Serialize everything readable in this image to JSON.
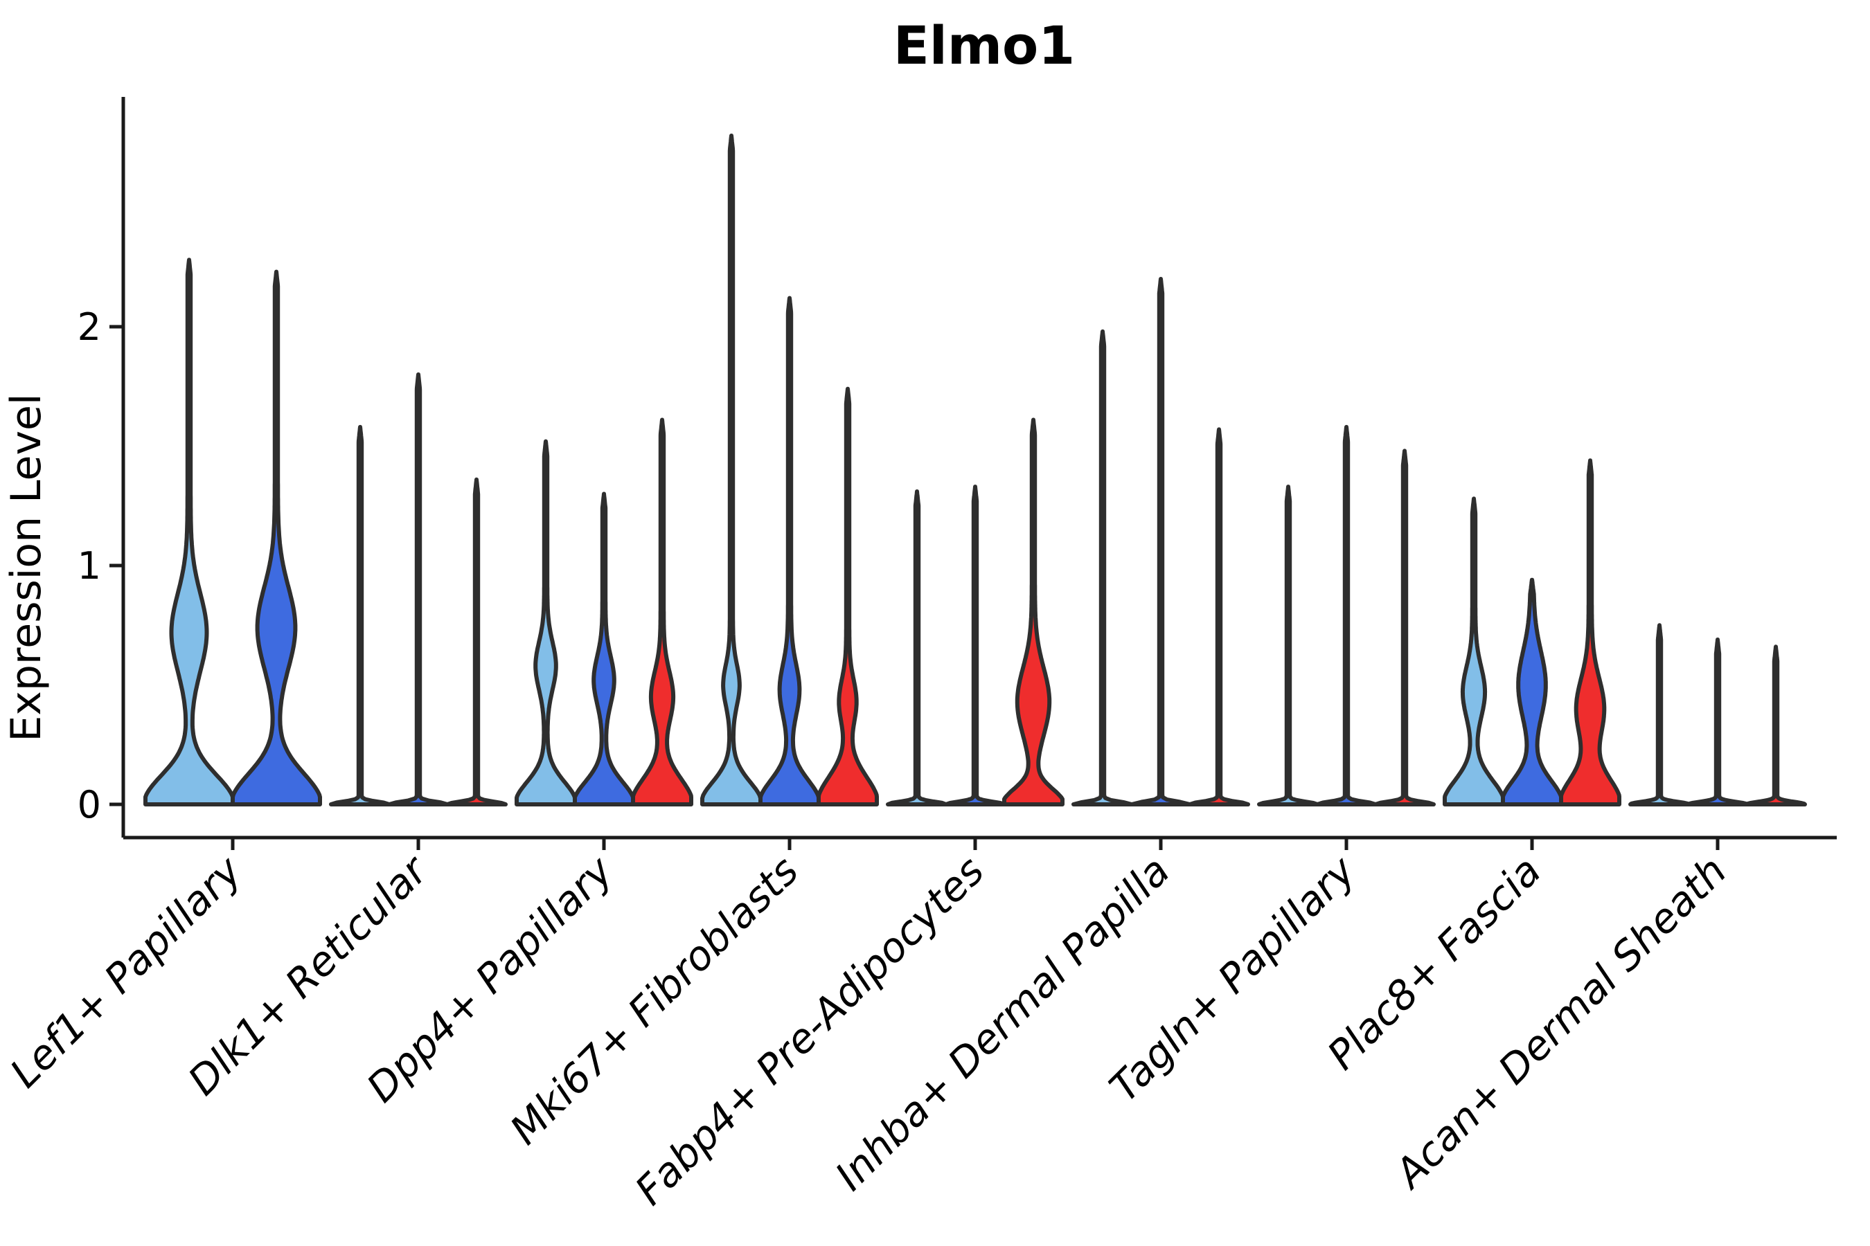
{
  "title": "Elmo1",
  "chart_data": {
    "type": "violin",
    "title": "Elmo1",
    "xlabel": "",
    "ylabel": "Expression Level",
    "yticks": [
      "0",
      "1",
      "2"
    ],
    "ylim": [
      -0.14,
      2.96
    ],
    "grid": false,
    "legend_position": "none",
    "colors": {
      "outline": "#2E2E2E",
      "axis": "#1A1A1A",
      "background": "#FFFFFF"
    },
    "splits": [
      {
        "name": "light-blue",
        "color": "#82BEE8"
      },
      {
        "name": "dark-blue",
        "color": "#3E6BE0"
      },
      {
        "name": "red",
        "color": "#EF2D2D"
      }
    ],
    "categories": [
      "Lef1+ Papillary",
      "Dlk1+ Reticular",
      "Dpp4+ Papillary",
      "Mki67+ Fibroblasts",
      "Fabp4+ Pre-Adipocytes",
      "Inhba+ Dermal Papilla",
      "Tagln+ Papillary",
      "Plac8+ Fascia",
      "Acan+ Dermal Sheath"
    ],
    "groups": [
      {
        "category": "Lef1+ Papillary",
        "violins": [
          {
            "split": "light-blue",
            "max": 2.28,
            "flat": false,
            "base_sigma": 0.17,
            "bulge_amp": 0.37,
            "bulge_center": 0.72,
            "bulge_sigma": 0.23
          },
          {
            "split": "dark-blue",
            "max": 2.23,
            "flat": false,
            "base_sigma": 0.18,
            "bulge_amp": 0.4,
            "bulge_center": 0.74,
            "bulge_sigma": 0.24
          }
        ]
      },
      {
        "category": "Dlk1+ Reticular",
        "violins": [
          {
            "split": "light-blue",
            "max": 1.58,
            "flat": true
          },
          {
            "split": "dark-blue",
            "max": 1.8,
            "flat": true
          },
          {
            "split": "red",
            "max": 1.36,
            "flat": true
          }
        ]
      },
      {
        "category": "Dpp4+ Papillary",
        "violins": [
          {
            "split": "light-blue",
            "max": 1.52,
            "flat": false,
            "base_sigma": 0.13,
            "bulge_amp": 0.3,
            "bulge_center": 0.58,
            "bulge_sigma": 0.14
          },
          {
            "split": "dark-blue",
            "max": 1.3,
            "flat": false,
            "base_sigma": 0.13,
            "bulge_amp": 0.3,
            "bulge_center": 0.52,
            "bulge_sigma": 0.14
          },
          {
            "split": "red",
            "max": 1.61,
            "flat": false,
            "base_sigma": 0.15,
            "bulge_amp": 0.33,
            "bulge_center": 0.45,
            "bulge_sigma": 0.15
          }
        ]
      },
      {
        "category": "Mki67+ Fibroblasts",
        "violins": [
          {
            "split": "light-blue",
            "max": 2.8,
            "flat": false,
            "base_sigma": 0.13,
            "bulge_amp": 0.23,
            "bulge_center": 0.5,
            "bulge_sigma": 0.12
          },
          {
            "split": "dark-blue",
            "max": 2.12,
            "flat": false,
            "base_sigma": 0.14,
            "bulge_amp": 0.29,
            "bulge_center": 0.48,
            "bulge_sigma": 0.15
          },
          {
            "split": "red",
            "max": 1.74,
            "flat": false,
            "base_sigma": 0.16,
            "bulge_amp": 0.25,
            "bulge_center": 0.43,
            "bulge_sigma": 0.13
          }
        ]
      },
      {
        "category": "Fabp4+ Pre-Adipocytes",
        "violins": [
          {
            "split": "light-blue",
            "max": 1.31,
            "flat": true
          },
          {
            "split": "dark-blue",
            "max": 1.33,
            "flat": true
          },
          {
            "split": "red",
            "max": 1.61,
            "flat": false,
            "base_sigma": 0.09,
            "bulge_amp": 0.5,
            "bulge_center": 0.43,
            "bulge_sigma": 0.2
          }
        ]
      },
      {
        "category": "Inhba+ Dermal Papilla",
        "violins": [
          {
            "split": "light-blue",
            "max": 1.98,
            "flat": true
          },
          {
            "split": "dark-blue",
            "max": 2.2,
            "flat": true
          },
          {
            "split": "red",
            "max": 1.57,
            "flat": true
          }
        ]
      },
      {
        "category": "Tagln+ Papillary",
        "violins": [
          {
            "split": "light-blue",
            "max": 1.33,
            "flat": true
          },
          {
            "split": "dark-blue",
            "max": 1.58,
            "flat": true
          },
          {
            "split": "red",
            "max": 1.48,
            "flat": true
          }
        ]
      },
      {
        "category": "Plac8+ Fascia",
        "violins": [
          {
            "split": "light-blue",
            "max": 1.28,
            "flat": false,
            "base_sigma": 0.14,
            "bulge_amp": 0.33,
            "bulge_center": 0.47,
            "bulge_sigma": 0.15
          },
          {
            "split": "dark-blue",
            "max": 0.94,
            "flat": false,
            "base_sigma": 0.14,
            "bulge_amp": 0.42,
            "bulge_center": 0.5,
            "bulge_sigma": 0.2
          },
          {
            "split": "red",
            "max": 1.44,
            "flat": false,
            "base_sigma": 0.15,
            "bulge_amp": 0.43,
            "bulge_center": 0.4,
            "bulge_sigma": 0.18
          }
        ]
      },
      {
        "category": "Acan+ Dermal Sheath",
        "violins": [
          {
            "split": "light-blue",
            "max": 0.75,
            "flat": true
          },
          {
            "split": "dark-blue",
            "max": 0.69,
            "flat": true
          },
          {
            "split": "red",
            "max": 0.66,
            "flat": true
          }
        ]
      }
    ]
  }
}
